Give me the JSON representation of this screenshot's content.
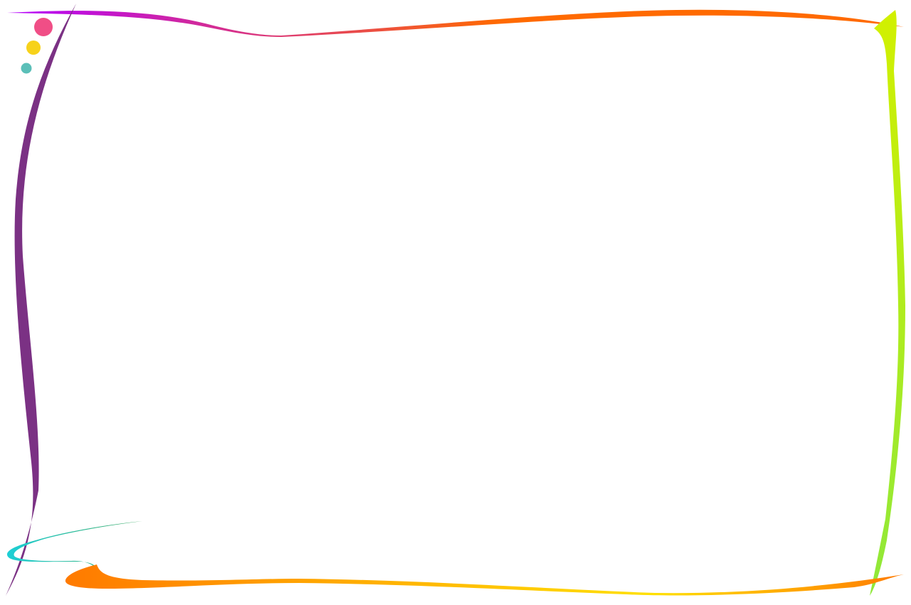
{
  "background_color": "#ffffff",
  "decor": {
    "dots": [
      {
        "name": "pink-dot",
        "color": "#f04e86"
      },
      {
        "name": "yellow-dot",
        "color": "#f7d21b"
      },
      {
        "name": "teal-dot",
        "color": "#5bbfb8"
      }
    ],
    "strokes": {
      "top": {
        "from": "#b400ff",
        "to": "#ff6a00"
      },
      "left": {
        "color": "#7b3184"
      },
      "right": {
        "from": "#d2f000",
        "to": "#8fe83a"
      },
      "bottom": {
        "from": "#ff7a00",
        "to": "#ffe000"
      },
      "bottom_swirl": {
        "from": "#1ecfd6",
        "to": "#3aa860"
      }
    }
  }
}
